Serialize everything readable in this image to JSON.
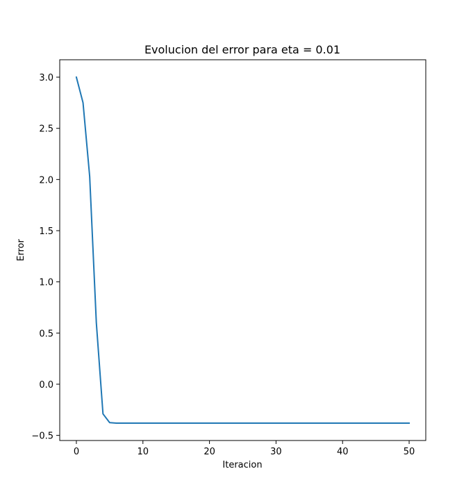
{
  "chart_data": {
    "type": "line",
    "title": "Evolucion del error para eta = 0.01",
    "xlabel": "Iteracion",
    "ylabel": "Error",
    "xlim": [
      -2.5,
      52.5
    ],
    "ylim": [
      -0.55,
      3.17
    ],
    "xticks": [
      0,
      10,
      20,
      30,
      40,
      50
    ],
    "xtick_labels": [
      "0",
      "10",
      "20",
      "30",
      "40",
      "50"
    ],
    "yticks": [
      -0.5,
      0.0,
      0.5,
      1.0,
      1.5,
      2.0,
      2.5,
      3.0
    ],
    "ytick_labels": [
      "−0.5",
      "0.0",
      "0.5",
      "1.0",
      "1.5",
      "2.0",
      "2.5",
      "3.0"
    ],
    "grid": false,
    "series": [
      {
        "color": "#1f77b4",
        "x": [
          0,
          1,
          2,
          3,
          4,
          5,
          6,
          7,
          8,
          9,
          10,
          11,
          12,
          13,
          14,
          15,
          16,
          17,
          18,
          19,
          20,
          21,
          22,
          23,
          24,
          25,
          26,
          27,
          28,
          29,
          30,
          31,
          32,
          33,
          34,
          35,
          36,
          37,
          38,
          39,
          40,
          41,
          42,
          43,
          44,
          45,
          46,
          47,
          48,
          49,
          50
        ],
        "y": [
          3.0,
          2.75,
          2.03,
          0.6,
          -0.29,
          -0.375,
          -0.38,
          -0.38,
          -0.38,
          -0.38,
          -0.38,
          -0.38,
          -0.38,
          -0.38,
          -0.38,
          -0.38,
          -0.38,
          -0.38,
          -0.38,
          -0.38,
          -0.38,
          -0.38,
          -0.38,
          -0.38,
          -0.38,
          -0.38,
          -0.38,
          -0.38,
          -0.38,
          -0.38,
          -0.38,
          -0.38,
          -0.38,
          -0.38,
          -0.38,
          -0.38,
          -0.38,
          -0.38,
          -0.38,
          -0.38,
          -0.38,
          -0.38,
          -0.38,
          -0.38,
          -0.38,
          -0.38,
          -0.38,
          -0.38,
          -0.38,
          -0.38,
          -0.38
        ]
      }
    ]
  }
}
